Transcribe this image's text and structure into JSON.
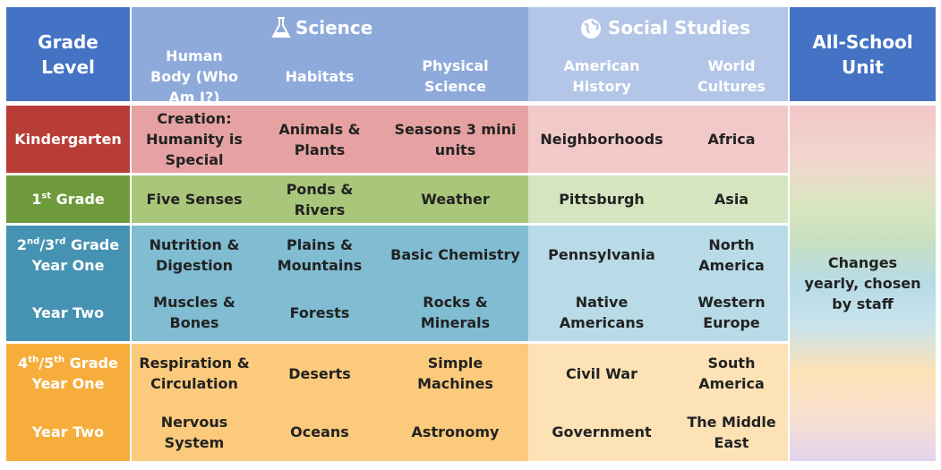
{
  "header": {
    "grade_level": "Grade Level",
    "science": "Science",
    "social_studies": "Social Studies",
    "all_school_unit": "All-School Unit",
    "science_columns": [
      "Human Body (Who Am I?)",
      "Habitats",
      "Physical Science"
    ],
    "social_columns": [
      "American History",
      "World Cultures"
    ]
  },
  "rows": [
    {
      "label": [
        "Kindergarten"
      ],
      "cells": [
        "Creation: Humanity is Special",
        "Animals & Plants",
        "Seasons 3 mini units",
        "Neighborhoods",
        "Africa"
      ]
    },
    {
      "label": [
        "1",
        "st",
        " Grade"
      ],
      "cells": [
        "Five Senses",
        "Ponds & Rivers",
        "Weather",
        "Pittsburgh",
        "Asia"
      ]
    },
    {
      "label": [
        "2",
        "nd",
        "/3",
        "rd",
        " Grade Year One"
      ],
      "cells": [
        "Nutrition & Digestion",
        "Plains & Mountains",
        "Basic Chemistry",
        "Pennsylvania",
        "North America"
      ]
    },
    {
      "label": [
        "Year Two"
      ],
      "cells": [
        "Muscles & Bones",
        "Forests",
        "Rocks & Minerals",
        "Native Americans",
        "Western Europe"
      ]
    },
    {
      "label": [
        "4",
        "th",
        "/5",
        "th",
        " Grade Year One"
      ],
      "cells": [
        "Respiration & Circulation",
        "Deserts",
        "Simple Machines",
        "Civil War",
        "South America"
      ]
    },
    {
      "label": [
        "Year Two"
      ],
      "cells": [
        "Nervous System",
        "Oceans",
        "Astronomy",
        "Government",
        "The Middle East"
      ]
    }
  ],
  "all_school_note": "Changes yearly, chosen by staff"
}
